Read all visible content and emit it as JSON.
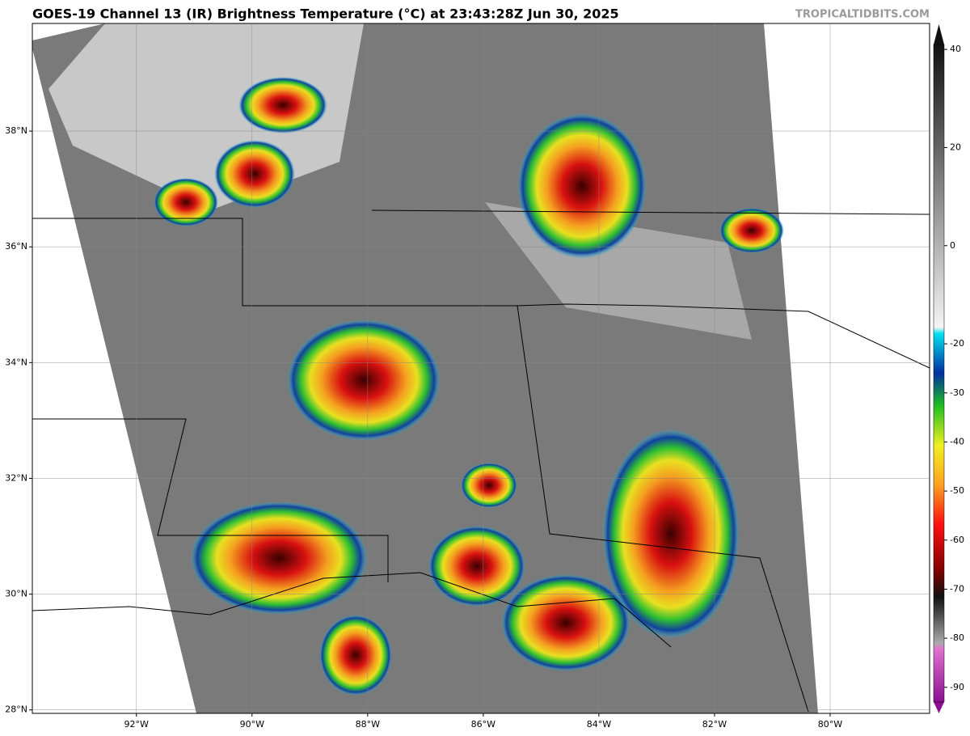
{
  "header": {
    "title": "GOES-19 Channel 13 (IR) Brightness Temperature (°C) at 23:43:28Z Jun 30, 2025",
    "credit": "TROPICALTIDBITS.COM"
  },
  "map": {
    "xlim": [
      -93.8,
      -78.28
    ],
    "ylim": [
      27.94,
      39.86
    ],
    "xticks": [
      {
        "value": -92,
        "label": "92°W"
      },
      {
        "value": -90,
        "label": "90°W"
      },
      {
        "value": -88,
        "label": "88°W"
      },
      {
        "value": -86,
        "label": "86°W"
      },
      {
        "value": -84,
        "label": "84°W"
      },
      {
        "value": -82,
        "label": "82°W"
      },
      {
        "value": -80,
        "label": "80°W"
      }
    ],
    "yticks": [
      {
        "value": 28,
        "label": "28°N"
      },
      {
        "value": 30,
        "label": "30°N"
      },
      {
        "value": 32,
        "label": "32°N"
      },
      {
        "value": 34,
        "label": "34°N"
      },
      {
        "value": 36,
        "label": "36°N"
      },
      {
        "value": 38,
        "label": "38°N"
      }
    ]
  },
  "colorbar": {
    "lim": [
      -93,
      41
    ],
    "ticks": [
      40,
      20,
      0,
      -20,
      -30,
      -40,
      -50,
      -60,
      -70,
      -80,
      -90
    ]
  }
}
